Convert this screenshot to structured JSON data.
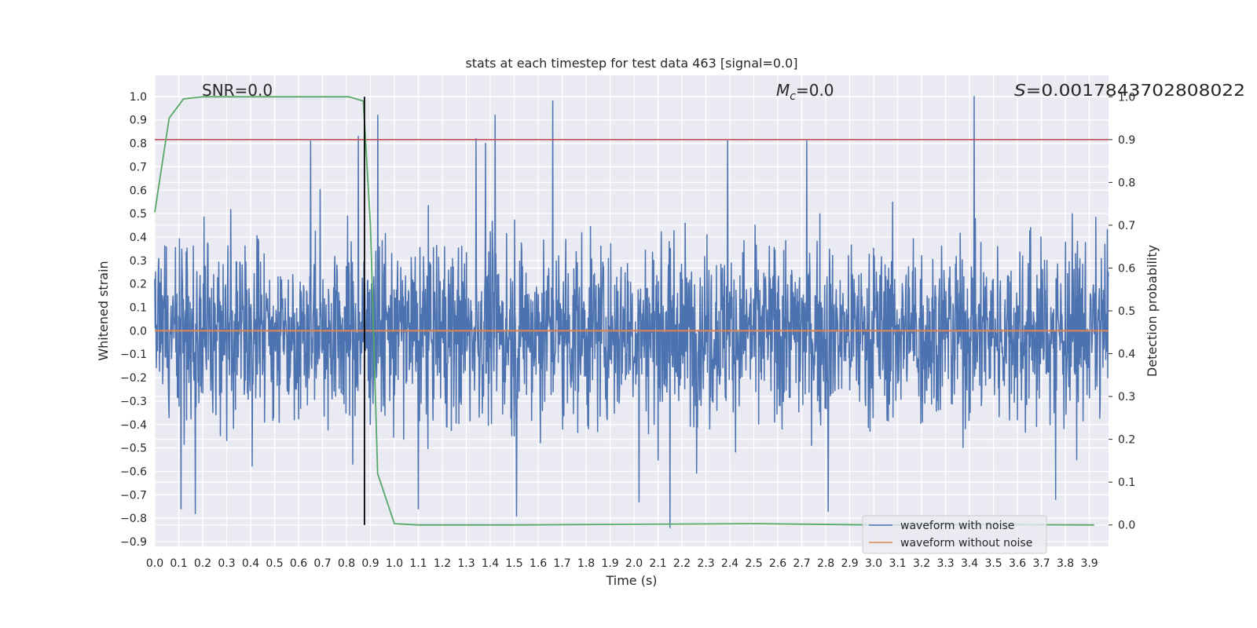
{
  "chart_data": {
    "type": "line",
    "title": "stats at each timestep for test data 463 [signal=0.0]",
    "xlabel": "Time (s)",
    "ylabel": "Whitened strain",
    "y2label": "Detection probability",
    "xlim": [
      0.0,
      3.98
    ],
    "ylim": [
      -0.92,
      1.09
    ],
    "y2lim": [
      -0.05,
      1.05
    ],
    "grid": true,
    "legend_placement": "lower-right",
    "xticks": [
      "0.0",
      "0.1",
      "0.2",
      "0.3",
      "0.4",
      "0.5",
      "0.6",
      "0.7",
      "0.8",
      "0.9",
      "1.0",
      "1.1",
      "1.2",
      "1.3",
      "1.4",
      "1.5",
      "1.6",
      "1.7",
      "1.8",
      "1.9",
      "2.0",
      "2.1",
      "2.2",
      "2.3",
      "2.4",
      "2.5",
      "2.6",
      "2.7",
      "2.8",
      "2.9",
      "3.0",
      "3.1",
      "3.2",
      "3.3",
      "3.4",
      "3.5",
      "3.6",
      "3.7",
      "3.8",
      "3.9"
    ],
    "yticks": [
      "1.0",
      "0.9",
      "0.8",
      "0.7",
      "0.6",
      "0.5",
      "0.4",
      "0.3",
      "0.2",
      "0.1",
      "0.0",
      "−0.1",
      "−0.2",
      "−0.3",
      "−0.4",
      "−0.5",
      "−0.6",
      "−0.7",
      "−0.8",
      "−0.9"
    ],
    "y2ticks": [
      "1.0",
      "0.9",
      "0.8",
      "0.7",
      "0.6",
      "0.5",
      "0.4",
      "0.3",
      "0.2",
      "0.1",
      "0.0"
    ],
    "annotations": {
      "snr": "SNR=0.0",
      "mc_symbol": "M",
      "mc_sub": "c",
      "mc_value": "=0.0",
      "s_symbol": "S",
      "s_value": "=0.0017843702808022"
    },
    "series": [
      {
        "name": "waveform with noise",
        "color": "#4c72b0",
        "kind": "noisy-strain",
        "envelope_peaks": [
          {
            "x": 0.65,
            "y": 0.81
          },
          {
            "x": 0.85,
            "y": 0.83
          },
          {
            "x": 0.93,
            "y": 0.92
          },
          {
            "x": 1.34,
            "y": 0.82
          },
          {
            "x": 1.38,
            "y": 0.8
          },
          {
            "x": 1.42,
            "y": 0.92
          },
          {
            "x": 1.66,
            "y": 0.98
          },
          {
            "x": 2.39,
            "y": 0.81
          },
          {
            "x": 2.72,
            "y": 0.81
          },
          {
            "x": 3.42,
            "y": 1.0
          }
        ],
        "envelope_troughs": [
          {
            "x": 0.11,
            "y": -0.76
          },
          {
            "x": 0.17,
            "y": -0.78
          },
          {
            "x": 1.1,
            "y": -0.76
          },
          {
            "x": 1.51,
            "y": -0.79
          },
          {
            "x": 2.02,
            "y": -0.73
          },
          {
            "x": 2.15,
            "y": -0.84
          },
          {
            "x": 2.81,
            "y": -0.77
          },
          {
            "x": 3.76,
            "y": -0.72
          }
        ]
      },
      {
        "name": "waveform without noise",
        "color": "#dd8452",
        "kind": "flat",
        "y": 0.0
      },
      {
        "name": "",
        "color": "#55a868",
        "axis": "right",
        "kind": "detection-probability",
        "x": [
          0.0,
          0.06,
          0.12,
          0.2,
          0.3,
          0.5,
          0.7,
          0.81,
          0.87,
          0.9,
          0.93,
          1.0,
          1.1,
          1.5,
          2.0,
          2.5,
          3.0,
          3.5,
          3.92
        ],
        "y": [
          0.73,
          0.95,
          0.995,
          1.0,
          1.0,
          1.0,
          1.0,
          1.0,
          0.99,
          0.7,
          0.12,
          0.003,
          0.0,
          0.0,
          0.0015,
          0.003,
          0.0,
          0.001,
          0.0
        ]
      }
    ],
    "threshold_line": {
      "axis": "right",
      "y": 0.9,
      "color": "#c44e52"
    },
    "vline": {
      "x": 0.875,
      "color": "#000000"
    }
  }
}
